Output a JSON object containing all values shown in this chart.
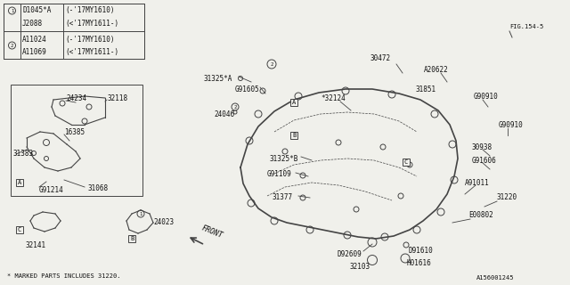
{
  "bg_color": "#f0f0eb",
  "line_color": "#444444",
  "text_color": "#111111",
  "fig_ref": "FIG.154-5",
  "diagram_id": "A156001245",
  "note": "* MARKED PARTS INCLUDES 31220.",
  "table_rows": [
    [
      "1",
      "D1045*A",
      "(-'17MY1610)"
    ],
    [
      "1",
      "J2088",
      "(<'17MY1611-)"
    ],
    [
      "2",
      "A11024",
      "(-'17MY1610)"
    ],
    [
      "2",
      "A11069",
      "(<'17MY1611-)"
    ]
  ]
}
